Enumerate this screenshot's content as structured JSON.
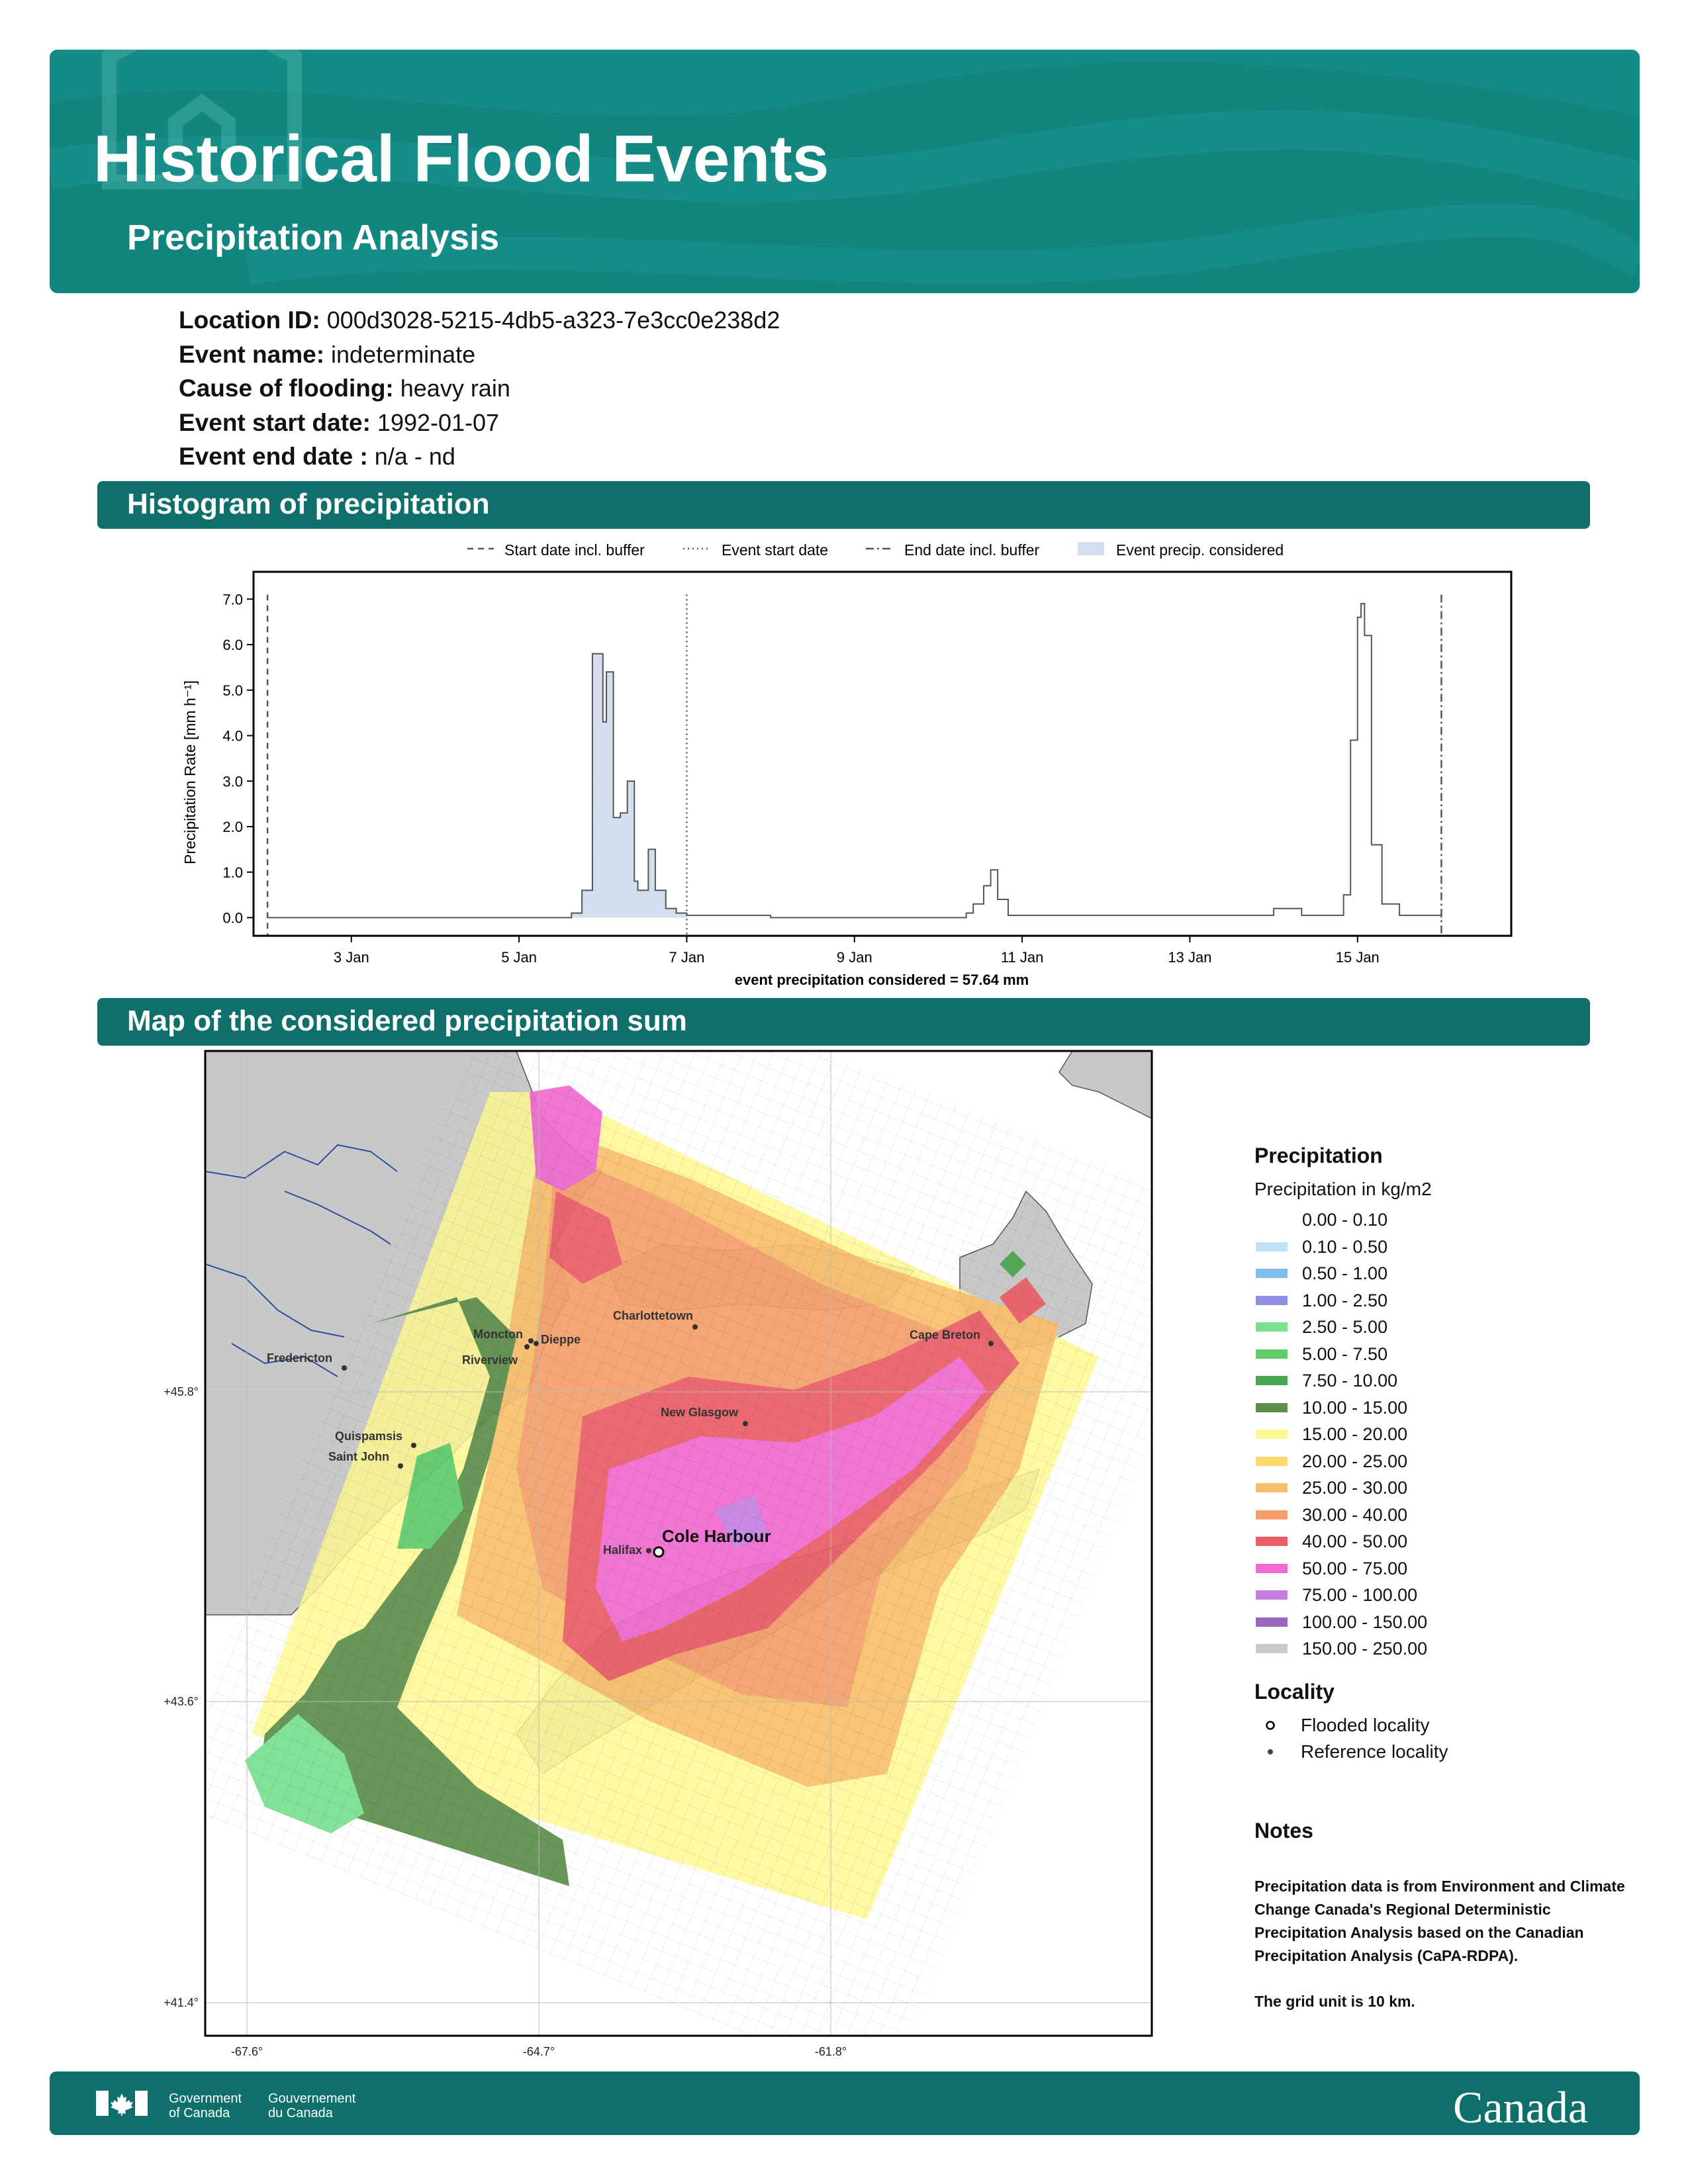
{
  "banner": {
    "title": "Historical Flood Events",
    "subtitle": "Precipitation Analysis"
  },
  "meta": [
    {
      "label": "Location ID:",
      "value": "000d3028-5215-4db5-a323-7e3cc0e238d2"
    },
    {
      "label": "Event name:",
      "value": "indeterminate"
    },
    {
      "label": "Cause of flooding:",
      "value": "heavy rain"
    },
    {
      "label": "Event start date:",
      "value": "1992-01-07"
    },
    {
      "label": "Event end date :",
      "value": "n/a - nd"
    }
  ],
  "sections": {
    "histogram": "Histogram of precipitation",
    "map": "Map of the considered precipitation sum"
  },
  "chart_data": {
    "type": "area",
    "title": "",
    "xlabel": "event precipitation considered = 57.64 mm",
    "ylabel": "Precipitation Rate [mm h⁻¹]",
    "xlim": [
      "1992-01-01T20:00",
      "1992-01-16T20:00"
    ],
    "ylim": [
      -0.4,
      7.6
    ],
    "x_ticks": [
      "3 Jan",
      "5 Jan",
      "7 Jan",
      "9 Jan",
      "11 Jan",
      "13 Jan",
      "15 Jan"
    ],
    "y_ticks": [
      "0.0",
      "1.0",
      "2.0",
      "3.0",
      "4.0",
      "5.0",
      "6.0",
      "7.0"
    ],
    "legend": [
      "Start date incl. buffer",
      "Event start date",
      "End date incl. buffer",
      "Event precip. considered"
    ],
    "legend_position": "top",
    "markers": [
      {
        "name": "Start date incl. buffer",
        "x": "1992-01-02T00:00"
      },
      {
        "name": "Event start date",
        "x": "1992-01-07T00:00"
      },
      {
        "name": "End date incl. buffer",
        "x": "1992-01-16T00:00"
      }
    ],
    "considered_range": [
      "1992-01-05T12:00",
      "1992-01-07T00:00"
    ],
    "series": [
      {
        "name": "Event precip. considered",
        "points": [
          [
            "1992-01-02T00:00",
            0.0
          ],
          [
            "1992-01-05T12:00",
            0.0
          ],
          [
            "1992-01-05T15:00",
            0.1
          ],
          [
            "1992-01-05T18:00",
            0.6
          ],
          [
            "1992-01-05T21:00",
            5.8
          ],
          [
            "1992-01-05T22:00",
            5.8
          ],
          [
            "1992-01-06T00:00",
            4.3
          ],
          [
            "1992-01-06T01:00",
            5.4
          ],
          [
            "1992-01-06T03:00",
            2.2
          ],
          [
            "1992-01-06T05:00",
            2.3
          ],
          [
            "1992-01-06T07:00",
            3.0
          ],
          [
            "1992-01-06T09:00",
            0.8
          ],
          [
            "1992-01-06T10:00",
            0.6
          ],
          [
            "1992-01-06T13:00",
            1.5
          ],
          [
            "1992-01-06T15:00",
            0.6
          ],
          [
            "1992-01-06T18:00",
            0.2
          ],
          [
            "1992-01-06T21:00",
            0.1
          ],
          [
            "1992-01-07T00:00",
            0.05
          ],
          [
            "1992-01-08T00:00",
            0.0
          ],
          [
            "1992-01-10T08:00",
            0.1
          ],
          [
            "1992-01-10T10:00",
            0.3
          ],
          [
            "1992-01-10T13:00",
            0.7
          ],
          [
            "1992-01-10T15:00",
            1.05
          ],
          [
            "1992-01-10T17:00",
            0.4
          ],
          [
            "1992-01-10T20:00",
            0.05
          ],
          [
            "1992-01-13T21:00",
            0.05
          ],
          [
            "1992-01-14T00:00",
            0.2
          ],
          [
            "1992-01-14T03:00",
            0.2
          ],
          [
            "1992-01-14T08:00",
            0.05
          ],
          [
            "1992-01-14T20:00",
            0.5
          ],
          [
            "1992-01-14T22:00",
            3.9
          ],
          [
            "1992-01-15T00:00",
            6.6
          ],
          [
            "1992-01-15T01:00",
            6.9
          ],
          [
            "1992-01-15T02:00",
            6.2
          ],
          [
            "1992-01-15T04:00",
            1.6
          ],
          [
            "1992-01-15T07:00",
            0.3
          ],
          [
            "1992-01-15T12:00",
            0.05
          ],
          [
            "1992-01-16T00:00",
            0.0
          ]
        ]
      }
    ]
  },
  "map": {
    "lat_ticks": [
      "+45.8°",
      "+43.6°",
      "+41.4°"
    ],
    "lon_ticks": [
      "-67.6°",
      "-64.7°",
      "-61.8°"
    ],
    "places": [
      {
        "name": "Charlottetown"
      },
      {
        "name": "Moncton"
      },
      {
        "name": "Dieppe"
      },
      {
        "name": "Riverview"
      },
      {
        "name": "Fredericton"
      },
      {
        "name": "Cape Breton"
      },
      {
        "name": "New Glasgow"
      },
      {
        "name": "Quispamsis"
      },
      {
        "name": "Saint John"
      },
      {
        "name": "Halifax"
      },
      {
        "name": "Cole Harbour"
      }
    ],
    "colors": {
      "land": "#c8c8c8",
      "water": "#ffffff",
      "border": "#2b4e9e"
    }
  },
  "legend": {
    "title": "Precipitation",
    "subtitle": "Precipitation in kg/m2",
    "classes": [
      {
        "label": "0.00 - 0.10",
        "color": "#ffffff"
      },
      {
        "label": "0.10 - 0.50",
        "color": "#bfe0f5"
      },
      {
        "label": "0.50 - 1.00",
        "color": "#7fc0ea"
      },
      {
        "label": "1.00 - 2.50",
        "color": "#8f8fe6"
      },
      {
        "label": "2.50 - 5.00",
        "color": "#78e08f"
      },
      {
        "label": "5.00 - 7.50",
        "color": "#5fcd6a"
      },
      {
        "label": "7.50 - 10.00",
        "color": "#4aa64f"
      },
      {
        "label": "10.00 - 15.00",
        "color": "#5c8f4c"
      },
      {
        "label": "15.00 - 20.00",
        "color": "#fdf78f"
      },
      {
        "label": "20.00 - 25.00",
        "color": "#fbd96a"
      },
      {
        "label": "25.00 - 30.00",
        "color": "#f8bf6b"
      },
      {
        "label": "30.00 - 40.00",
        "color": "#f49f6a"
      },
      {
        "label": "40.00 - 50.00",
        "color": "#ea5e67"
      },
      {
        "label": "50.00 - 75.00",
        "color": "#f06ad0"
      },
      {
        "label": "75.00 - 100.00",
        "color": "#c67fe0"
      },
      {
        "label": "100.00 - 150.00",
        "color": "#9a69bf"
      },
      {
        "label": "150.00 - 250.00",
        "color": "#c9c9c9"
      }
    ],
    "locality_title": "Locality",
    "localities": [
      {
        "label": "Flooded locality"
      },
      {
        "label": "Reference locality"
      }
    ]
  },
  "notes": {
    "title": "Notes",
    "text": "Precipitation data is from Environment and Climate Change Canada's Regional Deterministic Precipitation Analysis based on the Canadian Precipitation Analysis (CaPA-RDPA).",
    "grid": "The grid unit is 10 km."
  },
  "footer": {
    "gov_en_1": "Government",
    "gov_en_2": "of Canada",
    "gov_fr_1": "Gouvernement",
    "gov_fr_2": "du Canada",
    "wordmark": "Canada"
  }
}
